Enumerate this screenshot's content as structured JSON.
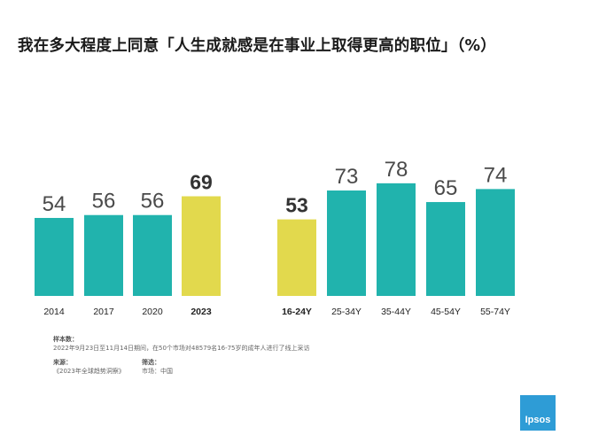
{
  "chart_data": [
    {
      "type": "bar",
      "title": "我在多大程度上同意「人生成就感是在事业上取得更高的职位」（%）",
      "categories": [
        "2014",
        "2017",
        "2020",
        "2023"
      ],
      "values": [
        54,
        56,
        56,
        69
      ],
      "highlight": [
        "2023"
      ],
      "ylim": [
        0,
        100
      ],
      "colors": {
        "default": "#21b3ad",
        "highlight": "#e2d94d"
      },
      "grid": false,
      "legend": "none"
    },
    {
      "type": "bar",
      "categories": [
        "16-24Y",
        "25-34Y",
        "35-44Y",
        "45-54Y",
        "55-74Y"
      ],
      "values": [
        53,
        73,
        78,
        65,
        74
      ],
      "highlight": [
        "16-24Y"
      ],
      "ylim": [
        0,
        100
      ],
      "colors": {
        "default": "#21b3ad",
        "highlight": "#e2d94d"
      },
      "grid": false,
      "legend": "none"
    }
  ],
  "notes": {
    "sample_label": "样本数：",
    "sample_text": "2022年9月23日至11月14日期间，在50个市场对48579名16-75岁的成年人进行了线上采访",
    "source_label": "来源：",
    "source_text": "《2023年全球趋势洞察》",
    "filter_label": "筛选：",
    "filter_text": "市场：中国"
  },
  "logo": {
    "text": "Ipsos",
    "color": "#2e9cd6"
  }
}
